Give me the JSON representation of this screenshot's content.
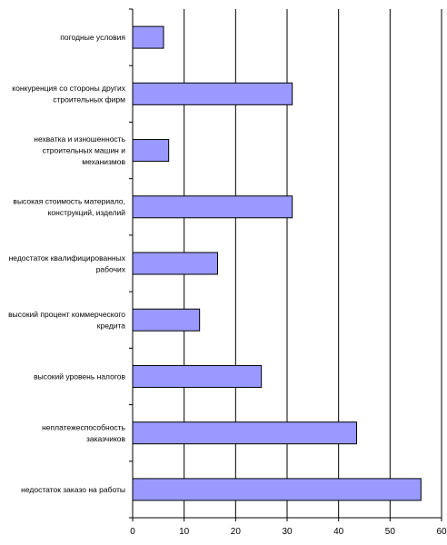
{
  "chart_data": {
    "type": "bar",
    "orientation": "horizontal",
    "categories": [
      "погодные условия",
      "конкуренция со стороны других строительных фирм",
      "нехватка и изношенность строительных машин и механизмов",
      "высокая стоимость материало, конструкций, изделий",
      "недостаток квалифицированных рабочих",
      "высокий процент коммерческого кредита",
      "высокий уровень налогов",
      "неплатежеспособность заказчиков",
      "недостаток заказо на работы"
    ],
    "category_lines": [
      [
        "погодные условия"
      ],
      [
        "конкуренция со стороны других",
        "строительных фирм"
      ],
      [
        "нехватка и изношенность",
        "строительных машин и",
        "механизмов"
      ],
      [
        "высокая стоимость материало,",
        "конструкций, изделий"
      ],
      [
        "недостаток квалифицированных",
        "рабочих"
      ],
      [
        "высокий процент коммерческого",
        "кредита"
      ],
      [
        "высокий уровень налогов"
      ],
      [
        "неплатежеспособность",
        "заказчиков"
      ],
      [
        "недостаток заказо на работы"
      ]
    ],
    "values": [
      6,
      31,
      7,
      31,
      16.5,
      13,
      25,
      43.5,
      56
    ],
    "xlim": [
      0,
      60
    ],
    "xticks": [
      0,
      10,
      20,
      30,
      40,
      50,
      60
    ],
    "grid": "vertical",
    "colors": {
      "bar": "#9999ff",
      "bar_stroke": "#000000",
      "grid": "#000000"
    }
  }
}
